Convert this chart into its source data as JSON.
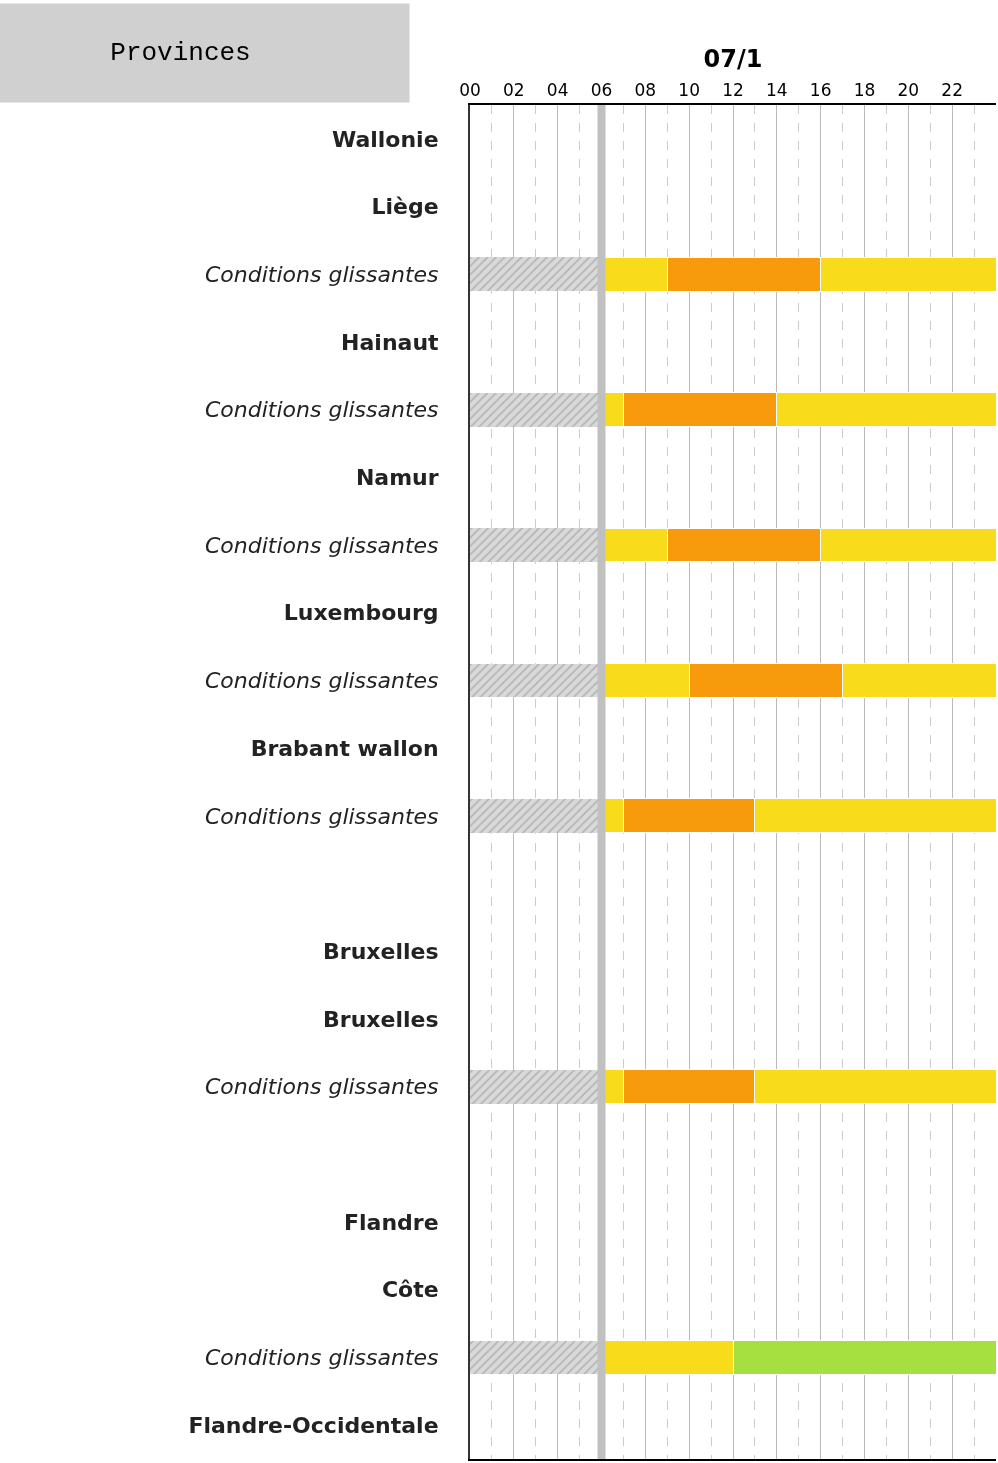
{
  "chart_data": {
    "type": "bar",
    "orientation": "horizontal",
    "stacked": true,
    "xlabel": "07/1",
    "ylabel": "Provinces",
    "categories": [
      "Wallonie",
      "Liège",
      "Conditions glissantes",
      "Hainaut",
      "Conditions glissantes",
      "Namur",
      "Conditions glissantes",
      "Luxembourg",
      "Conditions glissantes",
      "Brabant wallon",
      "Conditions glissantes",
      null,
      "Bruxelles",
      "Bruxelles",
      "Conditions glissantes",
      null,
      "Flandre",
      "Côte",
      "Conditions glissantes",
      "Flandre-Occidentale"
    ],
    "series": [
      {
        "color": "#d9d9d9",
        "values": [
          null,
          null,
          6,
          null,
          6,
          null,
          6,
          null,
          6,
          null,
          6,
          null,
          null,
          null,
          6,
          null,
          null,
          null,
          6,
          null
        ]
      },
      {
        "color": "#f8dc1c",
        "values": [
          null,
          null,
          3,
          null,
          1,
          null,
          3,
          null,
          4,
          null,
          1,
          null,
          null,
          null,
          1,
          null,
          null,
          null,
          6,
          null
        ]
      },
      {
        "colors": [
          null,
          null,
          "#f79a0c",
          null,
          "#f79a0c",
          null,
          "#f79a0c",
          null,
          "#f79a0c",
          null,
          "#f79a0c",
          null,
          null,
          null,
          "#f79a0c",
          null,
          null,
          null,
          "#a5e040",
          null
        ],
        "values": [
          null,
          null,
          7,
          null,
          7,
          null,
          7,
          null,
          7,
          null,
          6,
          null,
          null,
          null,
          6,
          null,
          null,
          null,
          12,
          null
        ]
      },
      {
        "color": "#f8dc1c",
        "values": [
          null,
          null,
          8,
          null,
          10,
          null,
          8,
          null,
          7,
          null,
          11,
          null,
          null,
          null,
          11,
          null,
          null,
          null,
          null,
          null
        ]
      }
    ],
    "xlim": [
      0,
      24
    ],
    "xticks": [
      {
        "value": 0,
        "label": "00"
      },
      {
        "value": 2,
        "label": "02"
      },
      {
        "value": 4,
        "label": "04"
      },
      {
        "value": 6,
        "label": "06"
      },
      {
        "value": 8,
        "label": "08"
      },
      10,
      12,
      14,
      16,
      18,
      20,
      22
    ],
    "ref_lines": [
      {
        "axis": "x",
        "value": 6,
        "color": "#c0c0c0"
      }
    ],
    "grid": "x"
  }
}
